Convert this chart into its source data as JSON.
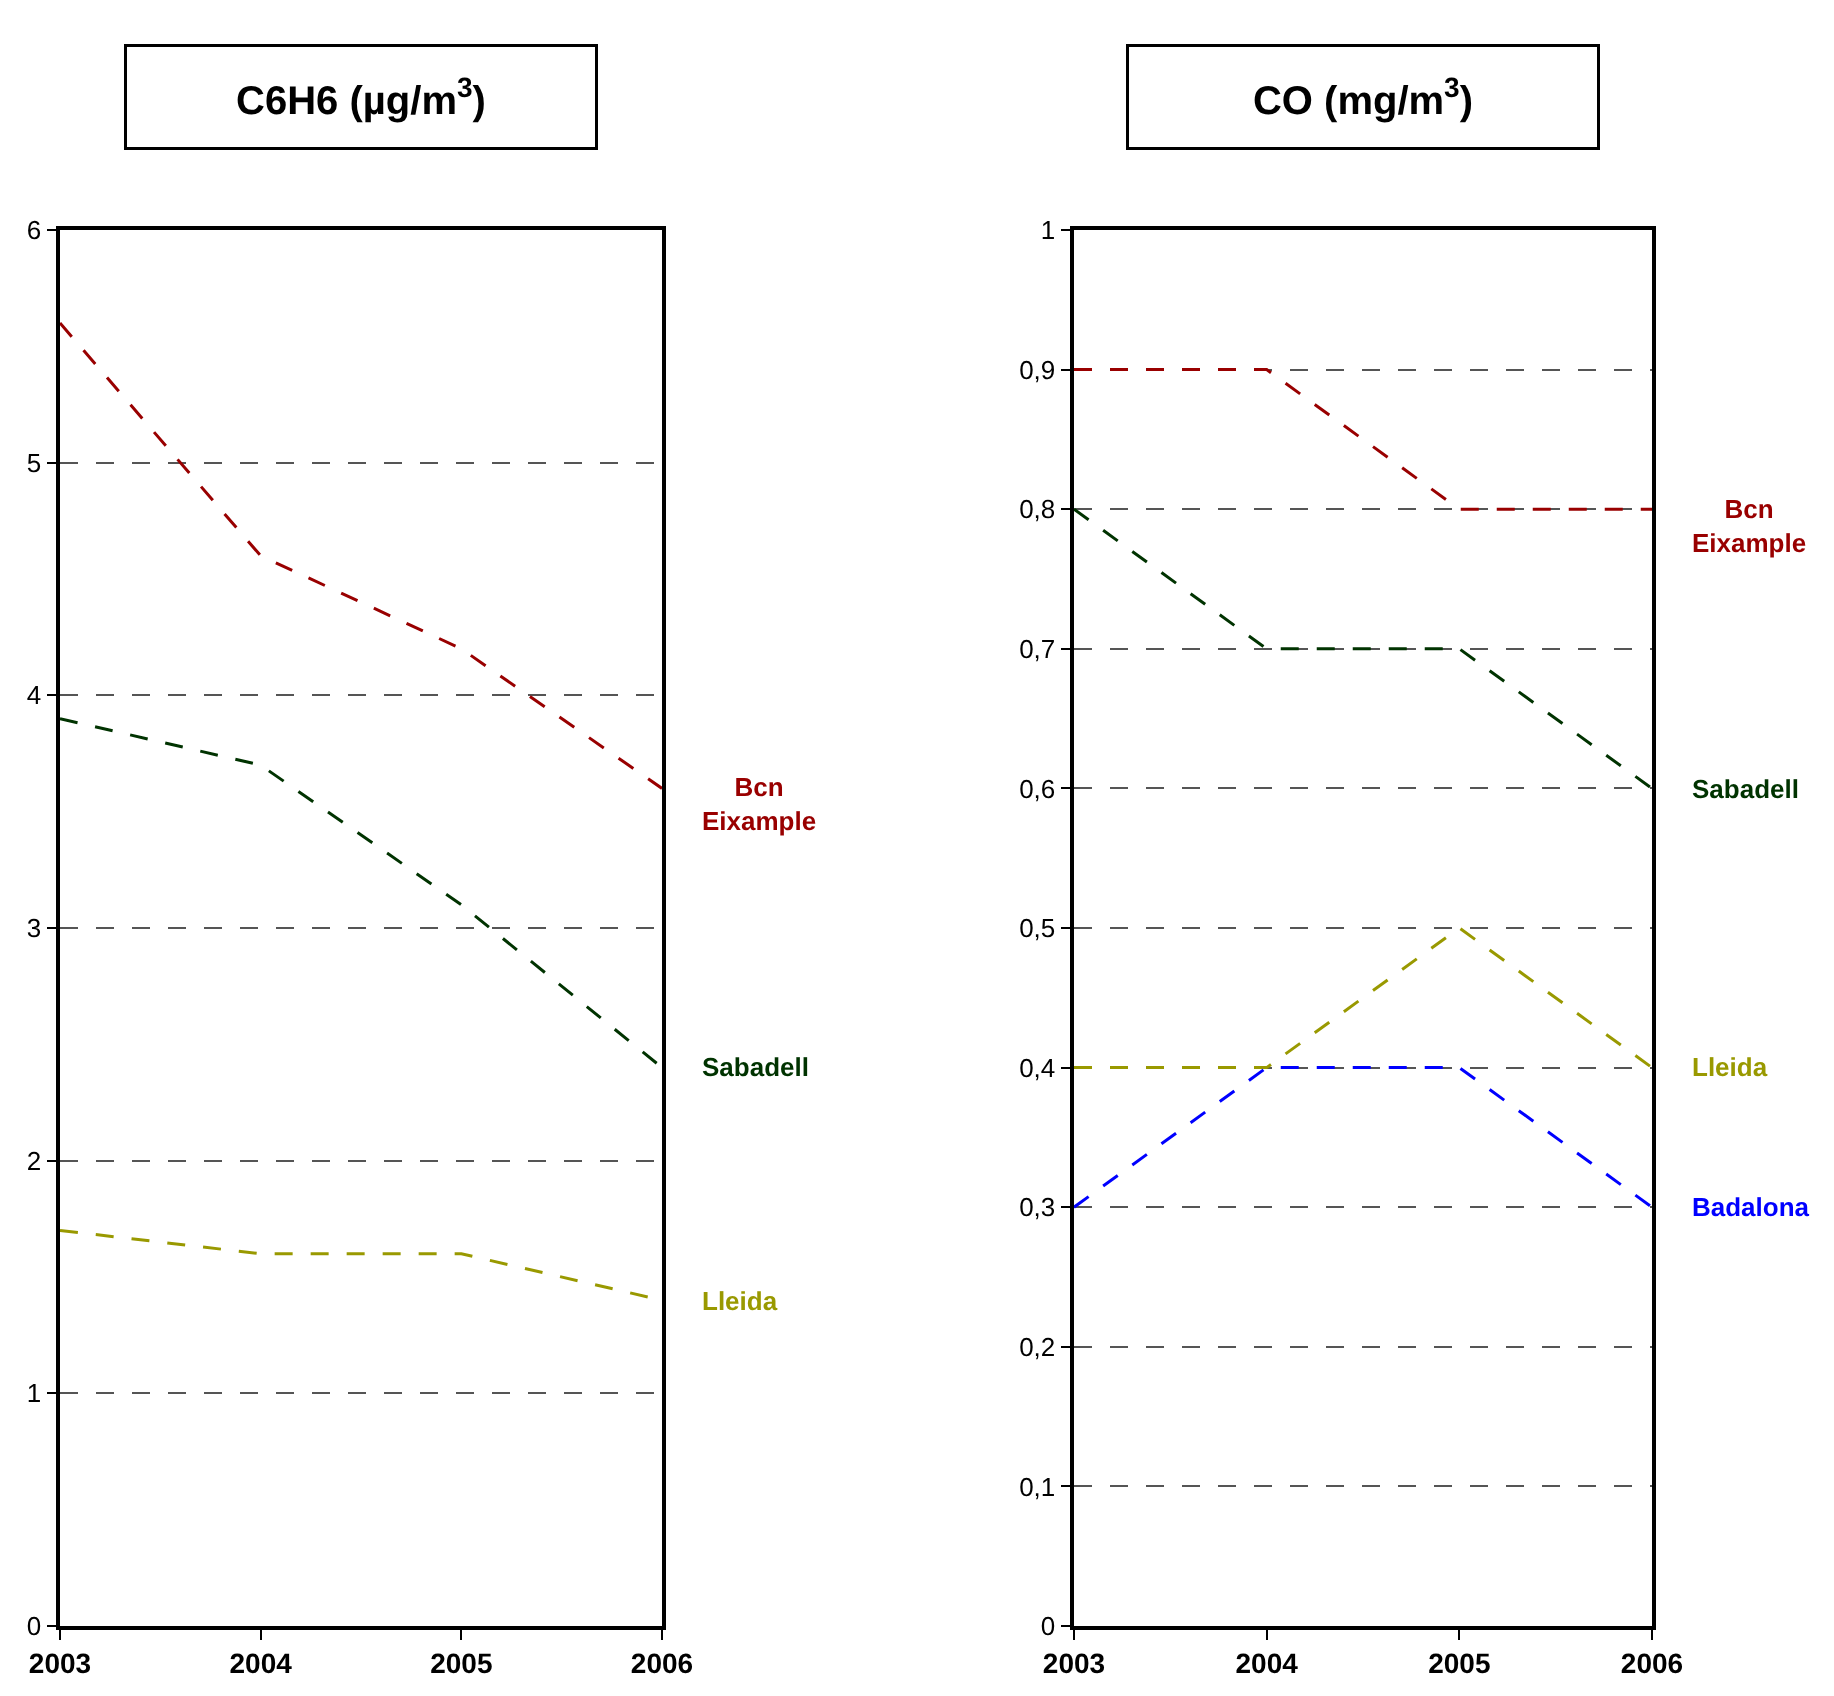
{
  "chart_data": [
    {
      "type": "line",
      "title": "C6H6 (µg/m$^{3}$)",
      "x": [
        2003,
        2004,
        2005,
        2006
      ],
      "xlim": [
        2003,
        2006
      ],
      "xticks": [
        2003,
        2004,
        2005,
        2006
      ],
      "ylim": [
        0,
        6
      ],
      "yticks": [
        0,
        1,
        2,
        3,
        4,
        5,
        6
      ],
      "grid": "y",
      "line_style": "dashed",
      "series": [
        {
          "name": "Bcn Eixample",
          "color": "#990000",
          "values": [
            5.6,
            4.6,
            4.2,
            3.6
          ]
        },
        {
          "name": "Sabadell",
          "color": "#003300",
          "values": [
            3.9,
            3.7,
            3.1,
            2.4
          ]
        },
        {
          "name": "Lleida",
          "color": "#999900",
          "values": [
            1.7,
            1.6,
            1.6,
            1.4
          ]
        }
      ]
    },
    {
      "type": "line",
      "title": "CO (mg/m$^{3}$)",
      "x": [
        2003,
        2004,
        2005,
        2006
      ],
      "xlim": [
        2003,
        2006
      ],
      "xticks": [
        2003,
        2004,
        2005,
        2006
      ],
      "ylim": [
        0,
        1
      ],
      "yticks": [
        0,
        {
          "value": 0.1,
          "label": "0,1"
        },
        {
          "value": 0.2,
          "label": "0,2"
        },
        {
          "value": 0.3,
          "label": "0,3"
        },
        {
          "value": 0.4,
          "label": "0,4"
        },
        {
          "value": 0.5,
          "label": "0,5"
        },
        {
          "value": 0.6,
          "label": "0,6"
        },
        {
          "value": 0.7,
          "label": "0,7"
        },
        {
          "value": 0.8,
          "label": "0,8"
        },
        {
          "value": 0.9,
          "label": "0,9"
        },
        1
      ],
      "grid": "y",
      "line_style": "dashed",
      "series": [
        {
          "name": "Bcn Eixample",
          "color": "#990000",
          "values": [
            0.9,
            0.9,
            0.8,
            0.8
          ]
        },
        {
          "name": "Sabadell",
          "color": "#003300",
          "values": [
            0.8,
            0.7,
            0.7,
            0.6
          ]
        },
        {
          "name": "Lleida",
          "color": "#999900",
          "values": [
            0.4,
            0.4,
            0.5,
            0.4
          ]
        },
        {
          "name": "Badalona",
          "color": "#0000ff",
          "values": [
            0.3,
            0.4,
            0.4,
            0.3
          ]
        }
      ]
    }
  ]
}
